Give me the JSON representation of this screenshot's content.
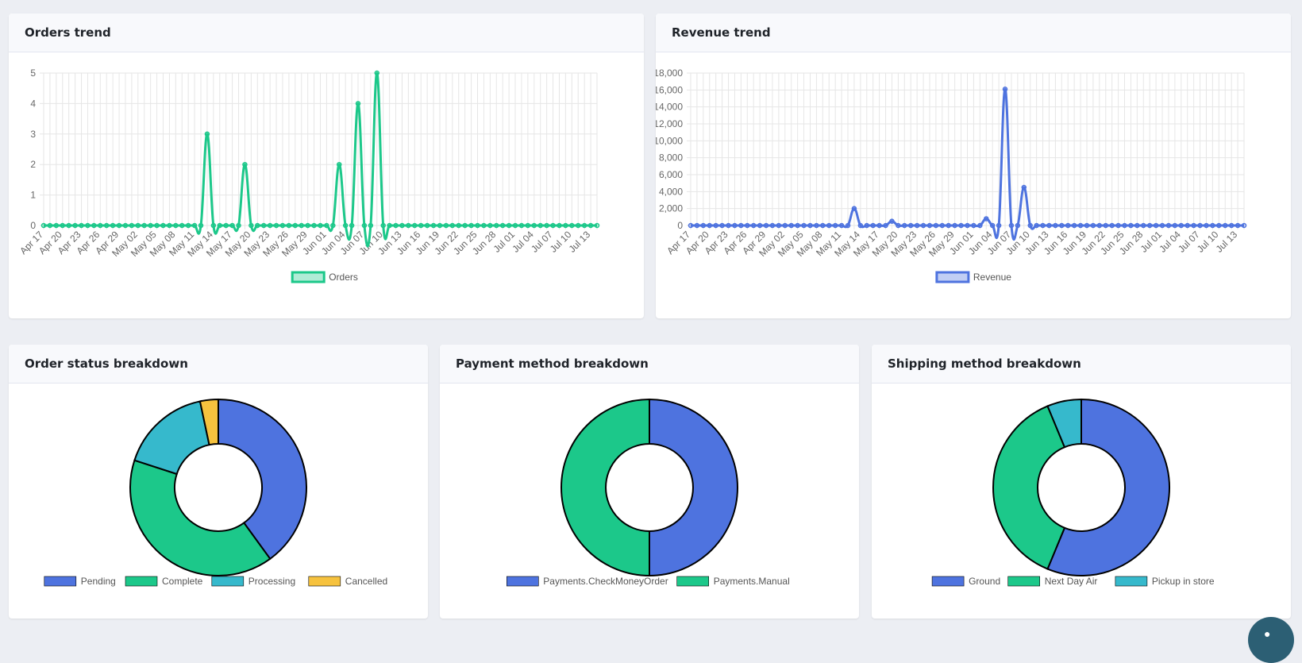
{
  "cards": {
    "orders_trend": {
      "title": "Orders trend"
    },
    "revenue_trend": {
      "title": "Revenue trend"
    },
    "order_status": {
      "title": "Order status breakdown"
    },
    "payment_method": {
      "title": "Payment method breakdown"
    },
    "shipping_method": {
      "title": "Shipping method breakdown"
    }
  },
  "fab": {
    "icon": "chat-icon"
  },
  "chart_data": [
    {
      "id": "orders",
      "type": "line",
      "title": "Orders trend",
      "x_tick_labels": [
        "Apr 17",
        "Apr 20",
        "Apr 23",
        "Apr 26",
        "Apr 29",
        "May 02",
        "May 05",
        "May 08",
        "May 11",
        "May 14",
        "May 17",
        "May 20",
        "May 23",
        "May 26",
        "May 29",
        "Jun 01",
        "Jun 04",
        "Jun 07",
        "Jun 10",
        "Jun 13",
        "Jun 16",
        "Jun 19",
        "Jun 22",
        "Jun 25",
        "Jun 28",
        "Jul 01",
        "Jul 04",
        "Jul 07",
        "Jul 10",
        "Jul 13"
      ],
      "y_tick_labels": [
        "0",
        "1",
        "2",
        "3",
        "4",
        "5"
      ],
      "ylim": [
        0,
        5
      ],
      "grid": true,
      "legend_position": "bottom",
      "color": "#1cc88a",
      "series": [
        {
          "name": "Orders",
          "start_date": "Apr 17",
          "peaks": [
            {
              "x": "May 13",
              "y": 3
            },
            {
              "x": "May 19",
              "y": 2
            },
            {
              "x": "Jun 03",
              "y": 2
            },
            {
              "x": "Jun 06",
              "y": 4
            },
            {
              "x": "Jun 09",
              "y": 5
            }
          ],
          "default": 0
        }
      ]
    },
    {
      "id": "revenue",
      "type": "line",
      "title": "Revenue trend",
      "x_tick_labels": [
        "Apr 17",
        "Apr 20",
        "Apr 23",
        "Apr 26",
        "Apr 29",
        "May 02",
        "May 05",
        "May 08",
        "May 11",
        "May 14",
        "May 17",
        "May 20",
        "May 23",
        "May 26",
        "May 29",
        "Jun 01",
        "Jun 04",
        "Jun 07",
        "Jun 10",
        "Jun 13",
        "Jun 16",
        "Jun 19",
        "Jun 22",
        "Jun 25",
        "Jun 28",
        "Jul 01",
        "Jul 04",
        "Jul 07",
        "Jul 10",
        "Jul 13"
      ],
      "y_tick_labels": [
        "0",
        "2,000",
        "4,000",
        "6,000",
        "8,000",
        "10,000",
        "12,000",
        "14,000",
        "16,000",
        "18,000"
      ],
      "ylim": [
        0,
        18000
      ],
      "grid": true,
      "legend_position": "bottom",
      "color": "#4e73df",
      "series": [
        {
          "name": "Revenue",
          "start_date": "Apr 17",
          "peaks": [
            {
              "x": "May 13",
              "y": 2000
            },
            {
              "x": "May 19",
              "y": 500
            },
            {
              "x": "Jun 03",
              "y": 800
            },
            {
              "x": "Jun 06",
              "y": 16100
            },
            {
              "x": "Jun 09",
              "y": 4500
            }
          ],
          "default": 0
        }
      ]
    },
    {
      "id": "order_status",
      "type": "pie",
      "title": "Order status breakdown",
      "legend_position": "bottom",
      "labels": [
        "Pending",
        "Complete",
        "Processing",
        "Cancelled"
      ],
      "values": [
        6,
        6,
        2.5,
        0.5
      ],
      "colors": [
        "#4e73df",
        "#1cc88a",
        "#36b9cc",
        "#f6c23e"
      ]
    },
    {
      "id": "payment_method",
      "type": "pie",
      "title": "Payment method breakdown",
      "legend_position": "bottom",
      "labels": [
        "Payments.CheckMoneyOrder",
        "Payments.Manual"
      ],
      "values": [
        1,
        1
      ],
      "colors": [
        "#4e73df",
        "#1cc88a"
      ]
    },
    {
      "id": "shipping_method",
      "type": "pie",
      "title": "Shipping method breakdown",
      "legend_position": "bottom",
      "labels": [
        "Ground",
        "Next Day Air",
        "Pickup in store"
      ],
      "values": [
        9,
        6,
        1
      ],
      "colors": [
        "#4e73df",
        "#1cc88a",
        "#36b9cc"
      ]
    }
  ]
}
